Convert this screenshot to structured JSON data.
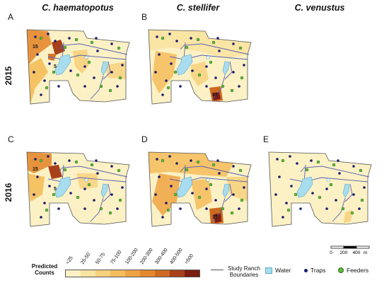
{
  "columns": [
    {
      "title": "C. haematopotus"
    },
    {
      "title": "C. stellifer"
    },
    {
      "title": "C. venustus"
    }
  ],
  "rows": [
    {
      "label": "2015"
    },
    {
      "label": "2016"
    }
  ],
  "panels": [
    {
      "letter": "A",
      "labels": [
        "15",
        "5"
      ]
    },
    {
      "letter": "B",
      "labels": [
        "17"
      ]
    },
    {
      "letter": "C",
      "labels": [
        "15",
        "5"
      ]
    },
    {
      "letter": "D",
      "labels": [
        "17"
      ]
    },
    {
      "letter": "E",
      "labels": []
    }
  ],
  "legend": {
    "title_line1": "Predicted",
    "title_line2": "Counts",
    "classes": [
      {
        "label": "<25",
        "color": "#fbf1c4"
      },
      {
        "label": "25-50",
        "color": "#f9e3a2"
      },
      {
        "label": "50-75",
        "color": "#f7d17d"
      },
      {
        "label": "75-100",
        "color": "#f4bc5a"
      },
      {
        "label": "100-200",
        "color": "#eea343"
      },
      {
        "label": "200-300",
        "color": "#e48830"
      },
      {
        "label": "300-400",
        "color": "#cf6a22"
      },
      {
        "label": "400-500",
        "color": "#a8401a"
      },
      {
        "label": ">500",
        "color": "#7a1d12"
      }
    ],
    "boundary_line1": "Study Ranch",
    "boundary_line2": "Boundaries",
    "water": "Water",
    "traps": "Traps",
    "feeders": "Feeders"
  },
  "scale": {
    "labels": [
      "0",
      "200",
      "400"
    ],
    "unit": "m"
  },
  "colors": {
    "water": "#a8dcef",
    "trap": "#1b1b6e",
    "feeder": "#5dbb3b",
    "boundary": "#5a5fb0"
  }
}
